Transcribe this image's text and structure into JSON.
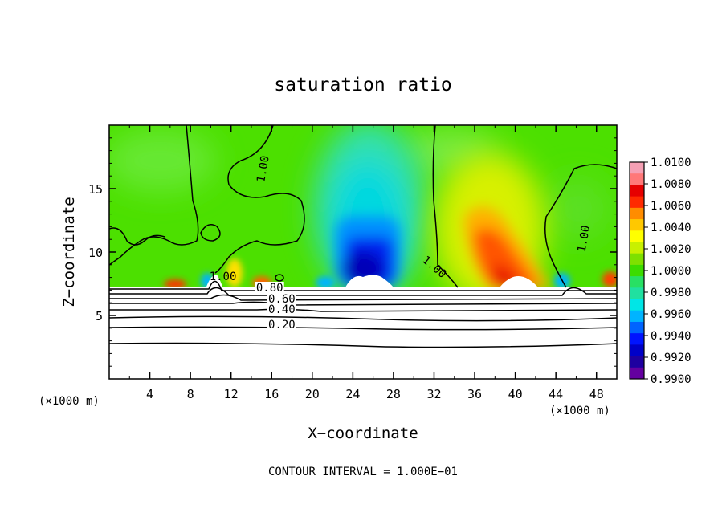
{
  "chart_data": {
    "type": "heatmap",
    "title": "saturation ratio",
    "xlabel": "X−coordinate",
    "ylabel": "Z−coordinate",
    "x_unit_left": "(×1000 m)",
    "x_unit_right": "(×1000 m)",
    "xlim": [
      0,
      50
    ],
    "ylim": [
      0,
      20
    ],
    "x_ticks": [
      4,
      8,
      12,
      16,
      20,
      24,
      28,
      32,
      36,
      40,
      44,
      48
    ],
    "y_ticks": [
      5,
      10,
      15
    ],
    "footer": "CONTOUR INTERVAL = 1.000E−01",
    "colorbar": {
      "ticks": [
        "1.0100",
        "1.0080",
        "1.0060",
        "1.0040",
        "1.0020",
        "1.0000",
        "0.9980",
        "0.9960",
        "0.9940",
        "0.9920",
        "0.9900"
      ],
      "colors": [
        "#f5a0b4",
        "#ff7878",
        "#e60000",
        "#ff2a00",
        "#ff8c00",
        "#ffc800",
        "#ffff00",
        "#c8f000",
        "#7ee000",
        "#3cdc00",
        "#28e064",
        "#20e0a0",
        "#00e6e6",
        "#00b4ff",
        "#0064ff",
        "#0014ff",
        "#0000c8",
        "#1e00a0",
        "#6400a0"
      ]
    },
    "contour_labels": [
      {
        "text": "1.00",
        "x": 15.5,
        "z": 16.5
      },
      {
        "text": "1.00",
        "x": 31.8,
        "z": 8.6
      },
      {
        "text": "1.00",
        "x": 47.1,
        "z": 11.0
      },
      {
        "text": "1.00",
        "x": 11.2,
        "z": 7.8
      },
      {
        "text": "0.80",
        "x": 15.8,
        "z": 6.9
      },
      {
        "text": "0.60",
        "x": 17.0,
        "z": 6.0
      },
      {
        "text": "0.40",
        "x": 17.0,
        "z": 5.2
      },
      {
        "text": "0.20",
        "x": 17.0,
        "z": 4.0
      }
    ]
  }
}
